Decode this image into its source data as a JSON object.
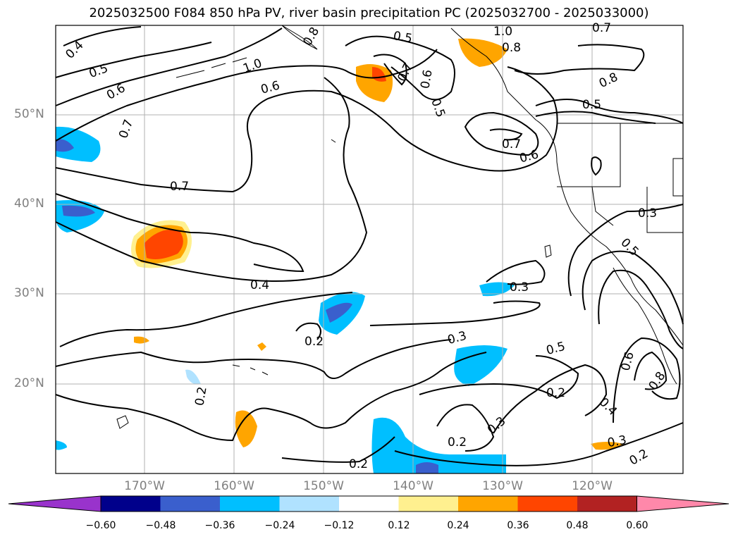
{
  "title": "2025032500 F084 850 hPa PV, river basin precipitation PC (2025032700 - 2025033000)",
  "lat_labels": [
    "50°N",
    "40°N",
    "30°N",
    "20°N"
  ],
  "lon_labels": [
    "170°W",
    "160°W",
    "150°W",
    "140°W",
    "130°W",
    "120°W"
  ],
  "contour_labels": [
    "0.4",
    "0.5",
    "0.6",
    "0.7",
    "1.0",
    "0.8",
    "0.5",
    "0.7",
    "0.6",
    "0.5",
    "1.0",
    "0.8",
    "0.7",
    "0.8",
    "0.5",
    "0.7",
    "0.6",
    "0.7",
    "0.6",
    "0.4",
    "0.3",
    "0.5",
    "0.3",
    "0.2",
    "0.3",
    "0.5",
    "0.2",
    "0.6",
    "0.8",
    "0.4",
    "0.2",
    "0.3",
    "0.2",
    "0.2",
    "0.3",
    "0.2"
  ],
  "colorbar": {
    "ticks": [
      "−0.60",
      "−0.48",
      "−0.36",
      "−0.24",
      "−0.12",
      "0.12",
      "0.24",
      "0.36",
      "0.48",
      "0.60"
    ],
    "colors": [
      "#9933cc",
      "#00008b",
      "#3a5fcd",
      "#00bfff",
      "#b0e2ff",
      "#ffffff",
      "#fff08f",
      "#ffa500",
      "#ff4500",
      "#b22222",
      "#ff88aa"
    ]
  },
  "colors": {
    "ocean_bg": "#ffffff",
    "grid": "#b0b0b0",
    "contour": "#000000",
    "axis_label": "#808080"
  }
}
